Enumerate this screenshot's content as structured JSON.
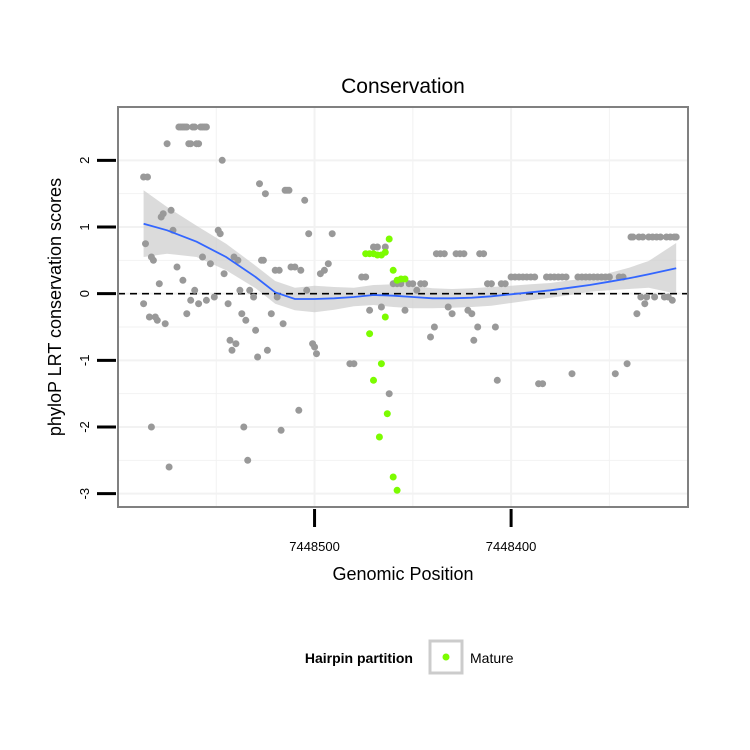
{
  "chart_data": {
    "type": "scatter",
    "title": "Conservation",
    "xlabel": "Genomic Position",
    "ylabel": "phyloP LRT conservation scores",
    "x_reversed": true,
    "xlim": [
      7448600,
      7448310
    ],
    "ylim": [
      -3.2,
      2.8
    ],
    "x_ticks": [
      7448500,
      7448400
    ],
    "y_ticks": [
      -3,
      -2,
      -1,
      0,
      1,
      2
    ],
    "grid": true,
    "reference_line": {
      "y": 0,
      "style": "dashed"
    },
    "legend": {
      "position": "bottom",
      "title": "Hairpin partition",
      "entries": [
        {
          "label": "Mature",
          "color": "#7cfc00"
        }
      ]
    },
    "colors": {
      "background": "#ffffff",
      "grid": "#f2f2f2",
      "frame": "#808080",
      "background_points": "#999999",
      "mature": "#7cfc00",
      "smooth_line": "#3366ff",
      "ribbon": "#cccccc"
    },
    "series": [
      {
        "role": "background",
        "points": [
          [
            7448587,
            1.75
          ],
          [
            7448585,
            1.75
          ],
          [
            7448586,
            0.75
          ],
          [
            7448587,
            -0.15
          ],
          [
            7448584,
            -0.35
          ],
          [
            7448583,
            0.55
          ],
          [
            7448582,
            0.5
          ],
          [
            7448581,
            -0.35
          ],
          [
            7448580,
            -0.4
          ],
          [
            7448583,
            -2.0
          ],
          [
            7448579,
            0.15
          ],
          [
            7448578,
            1.15
          ],
          [
            7448577,
            1.2
          ],
          [
            7448576,
            -0.45
          ],
          [
            7448575,
            2.25
          ],
          [
            7448574,
            -2.6
          ],
          [
            7448573,
            1.25
          ],
          [
            7448572,
            0.95
          ],
          [
            7448570,
            0.4
          ],
          [
            7448567,
            0.2
          ],
          [
            7448565,
            -0.3
          ],
          [
            7448563,
            -0.1
          ],
          [
            7448561,
            0.05
          ],
          [
            7448559,
            -0.15
          ],
          [
            7448557,
            0.55
          ],
          [
            7448555,
            -0.1
          ],
          [
            7448553,
            0.45
          ],
          [
            7448551,
            -0.05
          ],
          [
            7448549,
            0.95
          ],
          [
            7448548,
            0.9
          ],
          [
            7448547,
            2.0
          ],
          [
            7448546,
            0.3
          ],
          [
            7448544,
            -0.15
          ],
          [
            7448543,
            -0.7
          ],
          [
            7448542,
            -0.85
          ],
          [
            7448541,
            0.55
          ],
          [
            7448540,
            -0.75
          ],
          [
            7448539,
            0.5
          ],
          [
            7448538,
            0.05
          ],
          [
            7448537,
            -0.3
          ],
          [
            7448536,
            -2.0
          ],
          [
            7448535,
            -0.4
          ],
          [
            7448534,
            -2.5
          ],
          [
            7448533,
            0.05
          ],
          [
            7448531,
            -0.05
          ],
          [
            7448530,
            -0.55
          ],
          [
            7448529,
            -0.95
          ],
          [
            7448528,
            1.65
          ],
          [
            7448527,
            0.5
          ],
          [
            7448526,
            0.5
          ],
          [
            7448525,
            1.5
          ],
          [
            7448524,
            -0.85
          ],
          [
            7448522,
            -0.3
          ],
          [
            7448520,
            0.35
          ],
          [
            7448519,
            -0.05
          ],
          [
            7448518,
            0.35
          ],
          [
            7448517,
            -2.05
          ],
          [
            7448516,
            -0.45
          ],
          [
            7448515,
            1.55
          ],
          [
            7448514,
            1.55
          ],
          [
            7448513,
            1.55
          ],
          [
            7448512,
            0.4
          ],
          [
            7448510,
            0.4
          ],
          [
            7448508,
            -1.75
          ],
          [
            7448507,
            0.35
          ],
          [
            7448505,
            1.4
          ],
          [
            7448504,
            0.05
          ],
          [
            7448503,
            0.9
          ],
          [
            7448501,
            -0.75
          ],
          [
            7448500,
            -0.8
          ],
          [
            7448499,
            -0.9
          ],
          [
            7448497,
            0.3
          ],
          [
            7448495,
            0.35
          ],
          [
            7448493,
            0.45
          ],
          [
            7448491,
            0.9
          ],
          [
            7448569,
            2.5
          ],
          [
            7448568,
            2.5
          ],
          [
            7448567,
            2.5
          ],
          [
            7448566,
            2.5
          ],
          [
            7448565,
            2.5
          ],
          [
            7448564,
            2.25
          ],
          [
            7448563,
            2.25
          ],
          [
            7448562,
            2.5
          ],
          [
            7448561,
            2.5
          ],
          [
            7448560,
            2.25
          ],
          [
            7448559,
            2.25
          ],
          [
            7448558,
            2.5
          ],
          [
            7448557,
            2.5
          ],
          [
            7448556,
            2.5
          ],
          [
            7448555,
            2.5
          ],
          [
            7448482,
            -1.05
          ],
          [
            7448480,
            -1.05
          ],
          [
            7448476,
            0.25
          ],
          [
            7448474,
            0.25
          ],
          [
            7448472,
            -0.25
          ],
          [
            7448470,
            0.7
          ],
          [
            7448468,
            0.7
          ],
          [
            7448466,
            -0.2
          ],
          [
            7448464,
            0.7
          ],
          [
            7448462,
            -1.5
          ],
          [
            7448460,
            0.15
          ],
          [
            7448458,
            0.15
          ],
          [
            7448456,
            0.15
          ],
          [
            7448454,
            -0.25
          ],
          [
            7448452,
            0.15
          ],
          [
            7448450,
            0.15
          ],
          [
            7448448,
            0.05
          ],
          [
            7448446,
            0.15
          ],
          [
            7448444,
            0.15
          ],
          [
            7448441,
            -0.65
          ],
          [
            7448439,
            -0.5
          ],
          [
            7448438,
            0.6
          ],
          [
            7448436,
            0.6
          ],
          [
            7448434,
            0.6
          ],
          [
            7448432,
            -0.2
          ],
          [
            7448430,
            -0.3
          ],
          [
            7448428,
            0.6
          ],
          [
            7448426,
            0.6
          ],
          [
            7448424,
            0.6
          ],
          [
            7448422,
            -0.25
          ],
          [
            7448420,
            -0.3
          ],
          [
            7448419,
            -0.7
          ],
          [
            7448417,
            -0.5
          ],
          [
            7448416,
            0.6
          ],
          [
            7448414,
            0.6
          ],
          [
            7448412,
            0.15
          ],
          [
            7448410,
            0.15
          ],
          [
            7448408,
            -0.5
          ],
          [
            7448407,
            -1.3
          ],
          [
            7448405,
            0.15
          ],
          [
            7448403,
            0.15
          ],
          [
            7448400,
            0.25
          ],
          [
            7448398,
            0.25
          ],
          [
            7448396,
            0.25
          ],
          [
            7448394,
            0.25
          ],
          [
            7448392,
            0.25
          ],
          [
            7448390,
            0.25
          ],
          [
            7448388,
            0.25
          ],
          [
            7448386,
            -1.35
          ],
          [
            7448384,
            -1.35
          ],
          [
            7448382,
            0.25
          ],
          [
            7448380,
            0.25
          ],
          [
            7448378,
            0.25
          ],
          [
            7448376,
            0.25
          ],
          [
            7448374,
            0.25
          ],
          [
            7448372,
            0.25
          ],
          [
            7448369,
            -1.2
          ],
          [
            7448366,
            0.25
          ],
          [
            7448364,
            0.25
          ],
          [
            7448362,
            0.25
          ],
          [
            7448360,
            0.25
          ],
          [
            7448358,
            0.25
          ],
          [
            7448356,
            0.25
          ],
          [
            7448354,
            0.25
          ],
          [
            7448352,
            0.25
          ],
          [
            7448350,
            0.25
          ],
          [
            7448347,
            -1.2
          ],
          [
            7448345,
            0.25
          ],
          [
            7448343,
            0.25
          ],
          [
            7448341,
            -1.05
          ],
          [
            7448339,
            0.85
          ],
          [
            7448338,
            0.85
          ],
          [
            7448336,
            -0.3
          ],
          [
            7448335,
            0.85
          ],
          [
            7448334,
            -0.05
          ],
          [
            7448333,
            0.85
          ],
          [
            7448332,
            -0.15
          ],
          [
            7448331,
            -0.05
          ],
          [
            7448330,
            0.85
          ],
          [
            7448328,
            0.85
          ],
          [
            7448327,
            -0.05
          ],
          [
            7448326,
            0.85
          ],
          [
            7448324,
            0.85
          ],
          [
            7448322,
            -0.05
          ],
          [
            7448321,
            0.85
          ],
          [
            7448320,
            -0.05
          ],
          [
            7448319,
            0.85
          ],
          [
            7448318,
            -0.1
          ],
          [
            7448317,
            0.85
          ],
          [
            7448316,
            0.85
          ]
        ]
      },
      {
        "name": "Mature",
        "role": "mature",
        "points": [
          [
            7448474,
            0.6
          ],
          [
            7448472,
            0.6
          ],
          [
            7448470,
            0.6
          ],
          [
            7448468,
            0.58
          ],
          [
            7448466,
            0.58
          ],
          [
            7448464,
            0.62
          ],
          [
            7448462,
            0.82
          ],
          [
            7448460,
            0.35
          ],
          [
            7448458,
            0.2
          ],
          [
            7448456,
            0.22
          ],
          [
            7448454,
            0.22
          ],
          [
            7448472,
            -0.6
          ],
          [
            7448470,
            -1.3
          ],
          [
            7448466,
            -1.05
          ],
          [
            7448464,
            -0.35
          ],
          [
            7448463,
            -1.8
          ],
          [
            7448467,
            -2.15
          ],
          [
            7448460,
            -2.75
          ],
          [
            7448458,
            -2.95
          ]
        ]
      }
    ],
    "smooth": {
      "x": [
        7448587,
        7448575,
        7448560,
        7448545,
        7448530,
        7448520,
        7448510,
        7448500,
        7448490,
        7448480,
        7448470,
        7448460,
        7448450,
        7448440,
        7448430,
        7448420,
        7448410,
        7448400,
        7448390,
        7448380,
        7448370,
        7448360,
        7448350,
        7448340,
        7448330,
        7448316
      ],
      "y": [
        1.05,
        0.95,
        0.78,
        0.55,
        0.25,
        0.02,
        -0.08,
        -0.08,
        -0.07,
        -0.05,
        -0.02,
        -0.03,
        -0.05,
        -0.07,
        -0.07,
        -0.06,
        -0.04,
        -0.01,
        0.02,
        0.05,
        0.09,
        0.13,
        0.18,
        0.23,
        0.29,
        0.38
      ],
      "lower": [
        0.55,
        0.6,
        0.55,
        0.35,
        0.08,
        -0.15,
        -0.25,
        -0.28,
        -0.24,
        -0.19,
        -0.17,
        -0.2,
        -0.22,
        -0.22,
        -0.21,
        -0.2,
        -0.18,
        -0.14,
        -0.1,
        -0.06,
        -0.02,
        0.03,
        0.05,
        0.07,
        0.09,
        0.0
      ],
      "upper": [
        1.55,
        1.3,
        1.02,
        0.75,
        0.42,
        0.19,
        0.09,
        0.12,
        0.1,
        0.09,
        0.13,
        0.14,
        0.12,
        0.08,
        0.07,
        0.08,
        0.1,
        0.12,
        0.14,
        0.16,
        0.2,
        0.23,
        0.31,
        0.39,
        0.49,
        0.76
      ]
    }
  }
}
